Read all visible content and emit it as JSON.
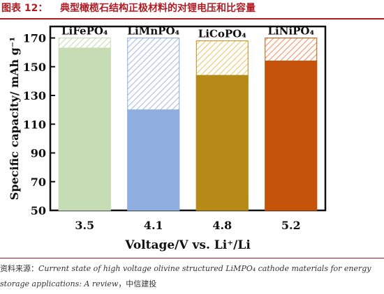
{
  "header": {
    "figure_number": "图表 12：",
    "title": "典型橄榄石结构正极材料的对锂电压和比容量"
  },
  "chart_data": {
    "type": "bar",
    "categories": [
      "3.5",
      "4.1",
      "4.8",
      "5.2"
    ],
    "bar_labels": [
      "LiFePO₄",
      "LiMnPO₄",
      "LiCoPO₄",
      "LiNiPO₄"
    ],
    "values": [
      163,
      120,
      144,
      154
    ],
    "theoretical": [
      170,
      170,
      168,
      170
    ],
    "colors": [
      "#c6dcb4",
      "#8eaee0",
      "#b58a16",
      "#c6530c"
    ],
    "hatch_colors": [
      "#c6dcb4",
      "#a9bde6",
      "#ecc86a",
      "#ef9466"
    ],
    "xlabel": "Voltage/V vs. Li⁺/Li",
    "ylabel": "Specific capacity/ mAh g⁻¹",
    "ylim": [
      50,
      178
    ],
    "yticks": [
      50,
      70,
      90,
      110,
      130,
      150,
      170
    ]
  },
  "source": {
    "lead": "资料来源：",
    "ref": "Current state of high voltage olivine structured LiMPO₄ cathode materials for energy storage applications: A review",
    "tail": "，中信建投"
  }
}
